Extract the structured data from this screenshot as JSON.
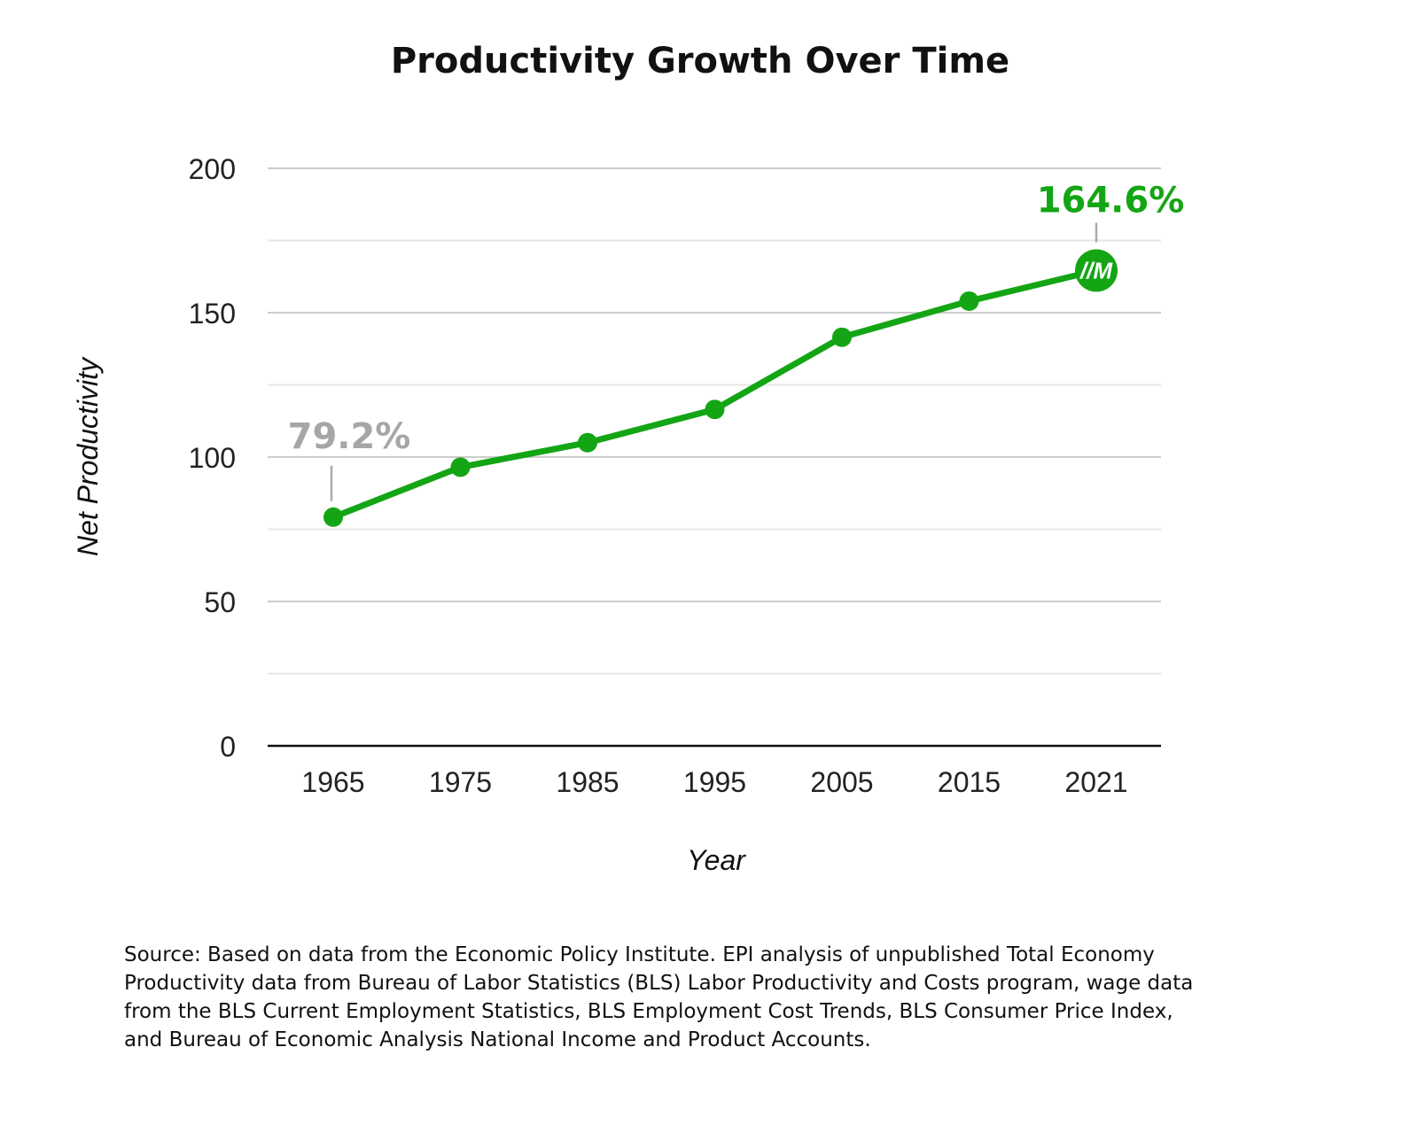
{
  "chart_data": {
    "type": "line",
    "title": "Productivity Growth Over Time",
    "xlabel": "Year",
    "ylabel": "Net Productivity",
    "ylim": [
      0,
      200
    ],
    "yticks": [
      0,
      50,
      100,
      150,
      200
    ],
    "grid": true,
    "categories": [
      "1965",
      "1975",
      "1985",
      "1995",
      "2005",
      "2015",
      "2021"
    ],
    "series": [
      {
        "name": "Net Productivity",
        "color": "#14a514",
        "values": [
          79.2,
          96.5,
          105,
          116.5,
          141.5,
          154,
          164.6
        ]
      }
    ],
    "annotations": [
      {
        "text": "79.2%",
        "point_index": 0,
        "color": "#a6a6a6"
      },
      {
        "text": "164.6%",
        "point_index": 6,
        "color": "#14a514"
      }
    ],
    "end_marker_logo": "//M"
  },
  "source_text": "Source: Based on data from the Economic Policy Institute. EPI analysis of unpublished Total Economy Productivity data from Bureau of Labor Statistics (BLS) Labor Productivity and Costs program, wage data from the BLS Current Employment Statistics, BLS Employment Cost Trends, BLS Consumer Price Index, and Bureau of Economic Analysis National Income and Product Accounts."
}
